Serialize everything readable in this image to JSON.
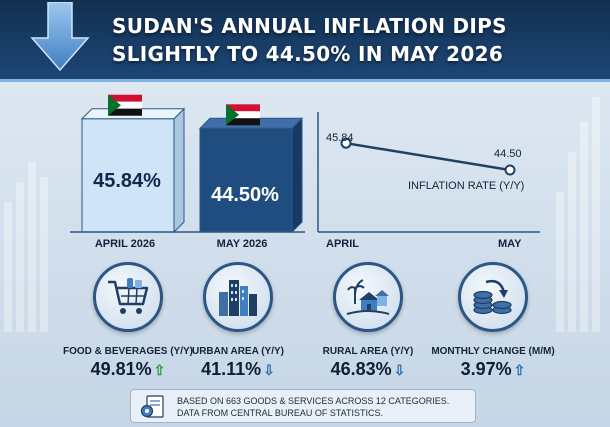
{
  "header": {
    "title_line1": "SUDAN'S ANNUAL INFLATION DIPS",
    "title_line2": "SLIGHTLY TO 44.50% IN MAY 2026"
  },
  "colors": {
    "header_bg": "#1d4675",
    "bar_april": "#cfe4f6",
    "bar_may": "#1f4d80",
    "up_arrow": "#2e9b3e",
    "down_arrow": "#2f6fb5"
  },
  "chart_data": [
    {
      "type": "bar",
      "categories": [
        "APRIL 2026",
        "MAY 2026"
      ],
      "values": [
        45.84,
        44.5
      ],
      "value_labels": [
        "45.84%",
        "44.50%"
      ]
    },
    {
      "type": "line",
      "x": [
        "APRIL",
        "MAY"
      ],
      "y": [
        45.84,
        44.5
      ],
      "point_labels": [
        "45.84",
        "44.50"
      ],
      "series_label": "INFLATION RATE (Y/Y)"
    }
  ],
  "stats": [
    {
      "label": "FOOD & BEVERAGES (Y/Y)",
      "value": "49.81%",
      "trend": "up",
      "icon": "shopping-cart-icon"
    },
    {
      "label": "URBAN AREA (Y/Y)",
      "value": "41.11%",
      "trend": "down",
      "icon": "city-buildings-icon"
    },
    {
      "label": "RURAL AREA (Y/Y)",
      "value": "46.83%",
      "trend": "down",
      "icon": "rural-houses-icon"
    },
    {
      "label": "MONTHLY CHANGE (M/M)",
      "value": "3.97%",
      "trend": "up",
      "icon": "coin-stack-icon"
    }
  ],
  "footnote": {
    "line1": "BASED ON 663 GOODS & SERVICES ACROSS 12 CATEGORIES.",
    "line2": "DATA FROM CENTRAL BUREAU OF STATISTICS."
  }
}
